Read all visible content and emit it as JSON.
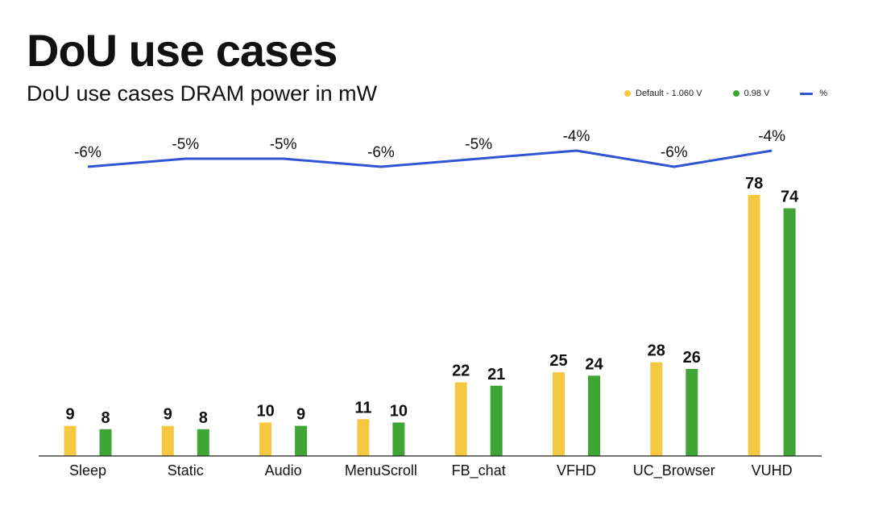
{
  "header": {
    "title": "DoU use cases",
    "subtitle": "DoU use cases DRAM power in mW"
  },
  "legend": [
    {
      "label": "Default - 1.060 V",
      "color": "#F5C842",
      "kind": "dot"
    },
    {
      "label": "0.98 V",
      "color": "#3FA535",
      "kind": "dot"
    },
    {
      "label": "%",
      "color": "#2F55D4",
      "kind": "line"
    }
  ],
  "chart_data": {
    "type": "bar",
    "title": "DoU use cases",
    "subtitle": "DoU use cases DRAM power in mW",
    "xlabel": "",
    "ylabel": "",
    "ylim": [
      0,
      80
    ],
    "categories": [
      "Sleep",
      "Static",
      "Audio",
      "MenuScroll",
      "FB_chat",
      "VFHD",
      "UC_Browser",
      "VUHD"
    ],
    "series": [
      {
        "name": "Default - 1.060 V",
        "color": "#F5C842",
        "values": [
          9,
          9,
          10,
          11,
          22,
          25,
          28,
          78
        ]
      },
      {
        "name": "0.98 V",
        "color": "#3FA535",
        "values": [
          8,
          8,
          9,
          10,
          21,
          24,
          26,
          74
        ]
      }
    ],
    "line": {
      "name": "%",
      "color": "#2F55D4",
      "values": [
        -6,
        -5,
        -5,
        -6,
        -5,
        -4,
        -6,
        -4
      ],
      "labels": [
        "-6%",
        "-5%",
        "-5%",
        "-6%",
        "-5%",
        "-4%",
        "-6%",
        "-4%"
      ]
    },
    "legend_position": "top-right"
  }
}
